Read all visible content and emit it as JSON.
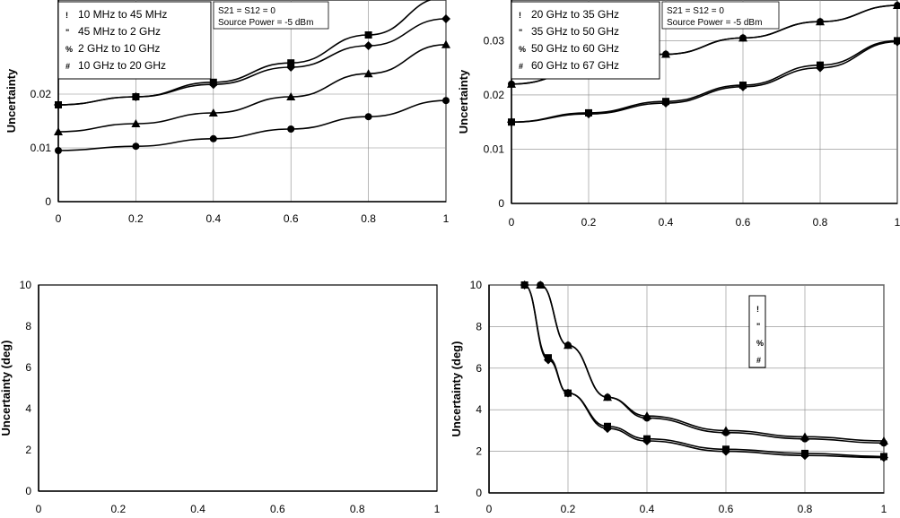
{
  "chart_data": [
    {
      "id": "top-left",
      "type": "line",
      "ylabel": "Uncertainty",
      "xlim": [
        0,
        1
      ],
      "ylim": [
        0,
        0.0375
      ],
      "yticks": [
        "0",
        "0.01",
        "0.02"
      ],
      "ytick_values": [
        0,
        0.01,
        0.02
      ],
      "xticks": [
        "0",
        "0.2",
        "0.4",
        "0.6",
        "0.8",
        "1"
      ],
      "grid": true,
      "legend_position": "top-left",
      "annotation": [
        "S21 = S12 = 0",
        "Source Power = -5 dBm"
      ],
      "series": [
        {
          "name": "10 MHz to 45 MHz",
          "legend_marker": "!",
          "marker": "circle",
          "x": [
            0,
            0.2,
            0.4,
            0.6,
            0.8,
            1.0
          ],
          "y": [
            0.0095,
            0.0103,
            0.0117,
            0.0135,
            0.0158,
            0.0188
          ]
        },
        {
          "name": "45 MHz to 2 GHz",
          "legend_marker": "\"",
          "marker": "diamond",
          "x": [
            0,
            0.2,
            0.4,
            0.6,
            0.8,
            1.0
          ],
          "y": [
            0.018,
            0.0195,
            0.0218,
            0.025,
            0.029,
            0.034
          ]
        },
        {
          "name": "2 GHz to 10 GHz",
          "legend_marker": "%",
          "marker": "triangle",
          "x": [
            0,
            0.2,
            0.4,
            0.6,
            0.8,
            1.0
          ],
          "y": [
            0.013,
            0.0145,
            0.0165,
            0.0195,
            0.0238,
            0.0292
          ]
        },
        {
          "name": "10 GHz to 20 GHz",
          "legend_marker": "#",
          "marker": "square",
          "x": [
            0,
            0.2,
            0.4,
            0.6,
            0.8,
            1.0
          ],
          "y": [
            0.018,
            0.0195,
            0.0222,
            0.0258,
            0.031,
            0.038
          ]
        }
      ]
    },
    {
      "id": "top-right",
      "type": "line",
      "ylabel": "Uncertainty",
      "xlim": [
        0,
        1
      ],
      "ylim": [
        0,
        0.0375
      ],
      "yticks": [
        "0",
        "0.01",
        "0.02",
        "0.03"
      ],
      "ytick_values": [
        0,
        0.01,
        0.02,
        0.03
      ],
      "xticks": [
        "0",
        "0.2",
        "0.4",
        "0.6",
        "0.8",
        "1"
      ],
      "grid": true,
      "legend_position": "top-left",
      "annotation": [
        "S21 = S12 = 0",
        "Source Power = -5 dBm"
      ],
      "series": [
        {
          "name": "20 GHz to 35 GHz",
          "legend_marker": "!",
          "marker": "circle",
          "x": [
            0,
            0.2,
            0.4,
            0.6,
            0.8,
            1.0
          ],
          "y": [
            0.022,
            0.0245,
            0.0275,
            0.0305,
            0.0335,
            0.0365
          ]
        },
        {
          "name": "35 GHz to 50 GHz",
          "legend_marker": "\"",
          "marker": "diamond",
          "x": [
            0,
            0.2,
            0.4,
            0.6,
            0.8,
            1.0
          ],
          "y": [
            0.015,
            0.0165,
            0.0185,
            0.0215,
            0.025,
            0.0298
          ]
        },
        {
          "name": "50 GHz to 60 GHz",
          "legend_marker": "%",
          "marker": "triangle",
          "x": [
            0,
            0.2,
            0.4,
            0.6,
            0.8,
            1.0
          ],
          "y": [
            0.022,
            0.0245,
            0.0275,
            0.0305,
            0.0335,
            0.0365
          ]
        },
        {
          "name": "60 GHz to 67 GHz",
          "legend_marker": "#",
          "marker": "square",
          "x": [
            0,
            0.2,
            0.4,
            0.6,
            0.8,
            1.0
          ],
          "y": [
            0.015,
            0.0167,
            0.0188,
            0.0218,
            0.0255,
            0.03
          ]
        }
      ]
    },
    {
      "id": "bottom-left",
      "type": "line",
      "ylabel": "Uncertainty (deg)",
      "xlim": [
        0,
        1
      ],
      "ylim": [
        0,
        10
      ],
      "yticks": [
        "0",
        "2",
        "4",
        "6",
        "8",
        "10"
      ],
      "ytick_values": [
        0,
        2,
        4,
        6,
        8,
        10
      ],
      "xticks": [
        "0",
        "0.2",
        "0.4",
        "0.6",
        "0.8",
        "1"
      ],
      "grid": false,
      "legend_position": "",
      "annotation": [],
      "series": []
    },
    {
      "id": "bottom-right",
      "type": "line",
      "ylabel": "Uncertainty (deg)",
      "xlim": [
        0,
        1
      ],
      "ylim": [
        0,
        10
      ],
      "yticks": [
        "0",
        "2",
        "4",
        "6",
        "8",
        "10"
      ],
      "ytick_values": [
        0,
        2,
        4,
        6,
        8,
        10
      ],
      "xticks": [
        "0",
        "0.2",
        "0.4",
        "0.6",
        "0.8",
        "1"
      ],
      "grid": true,
      "legend_position": "top-right",
      "annotation": [],
      "series": [
        {
          "name": "",
          "legend_marker": "!",
          "marker": "circle",
          "x": [
            0.13,
            0.2,
            0.3,
            0.4,
            0.6,
            0.8,
            1.0
          ],
          "y": [
            10,
            7.1,
            4.6,
            3.6,
            2.9,
            2.6,
            2.4
          ]
        },
        {
          "name": "",
          "legend_marker": "\"",
          "marker": "diamond",
          "x": [
            0.09,
            0.15,
            0.2,
            0.3,
            0.4,
            0.6,
            0.8,
            1.0
          ],
          "y": [
            10,
            6.4,
            4.8,
            3.1,
            2.5,
            2.0,
            1.8,
            1.7
          ]
        },
        {
          "name": "",
          "legend_marker": "%",
          "marker": "triangle",
          "x": [
            0.13,
            0.2,
            0.3,
            0.4,
            0.6,
            0.8,
            1.0
          ],
          "y": [
            10,
            7.1,
            4.6,
            3.7,
            3.0,
            2.7,
            2.5
          ]
        },
        {
          "name": "",
          "legend_marker": "#",
          "marker": "square",
          "x": [
            0.09,
            0.15,
            0.2,
            0.3,
            0.4,
            0.6,
            0.8,
            1.0
          ],
          "y": [
            10,
            6.5,
            4.8,
            3.2,
            2.6,
            2.1,
            1.9,
            1.75
          ]
        }
      ]
    }
  ]
}
